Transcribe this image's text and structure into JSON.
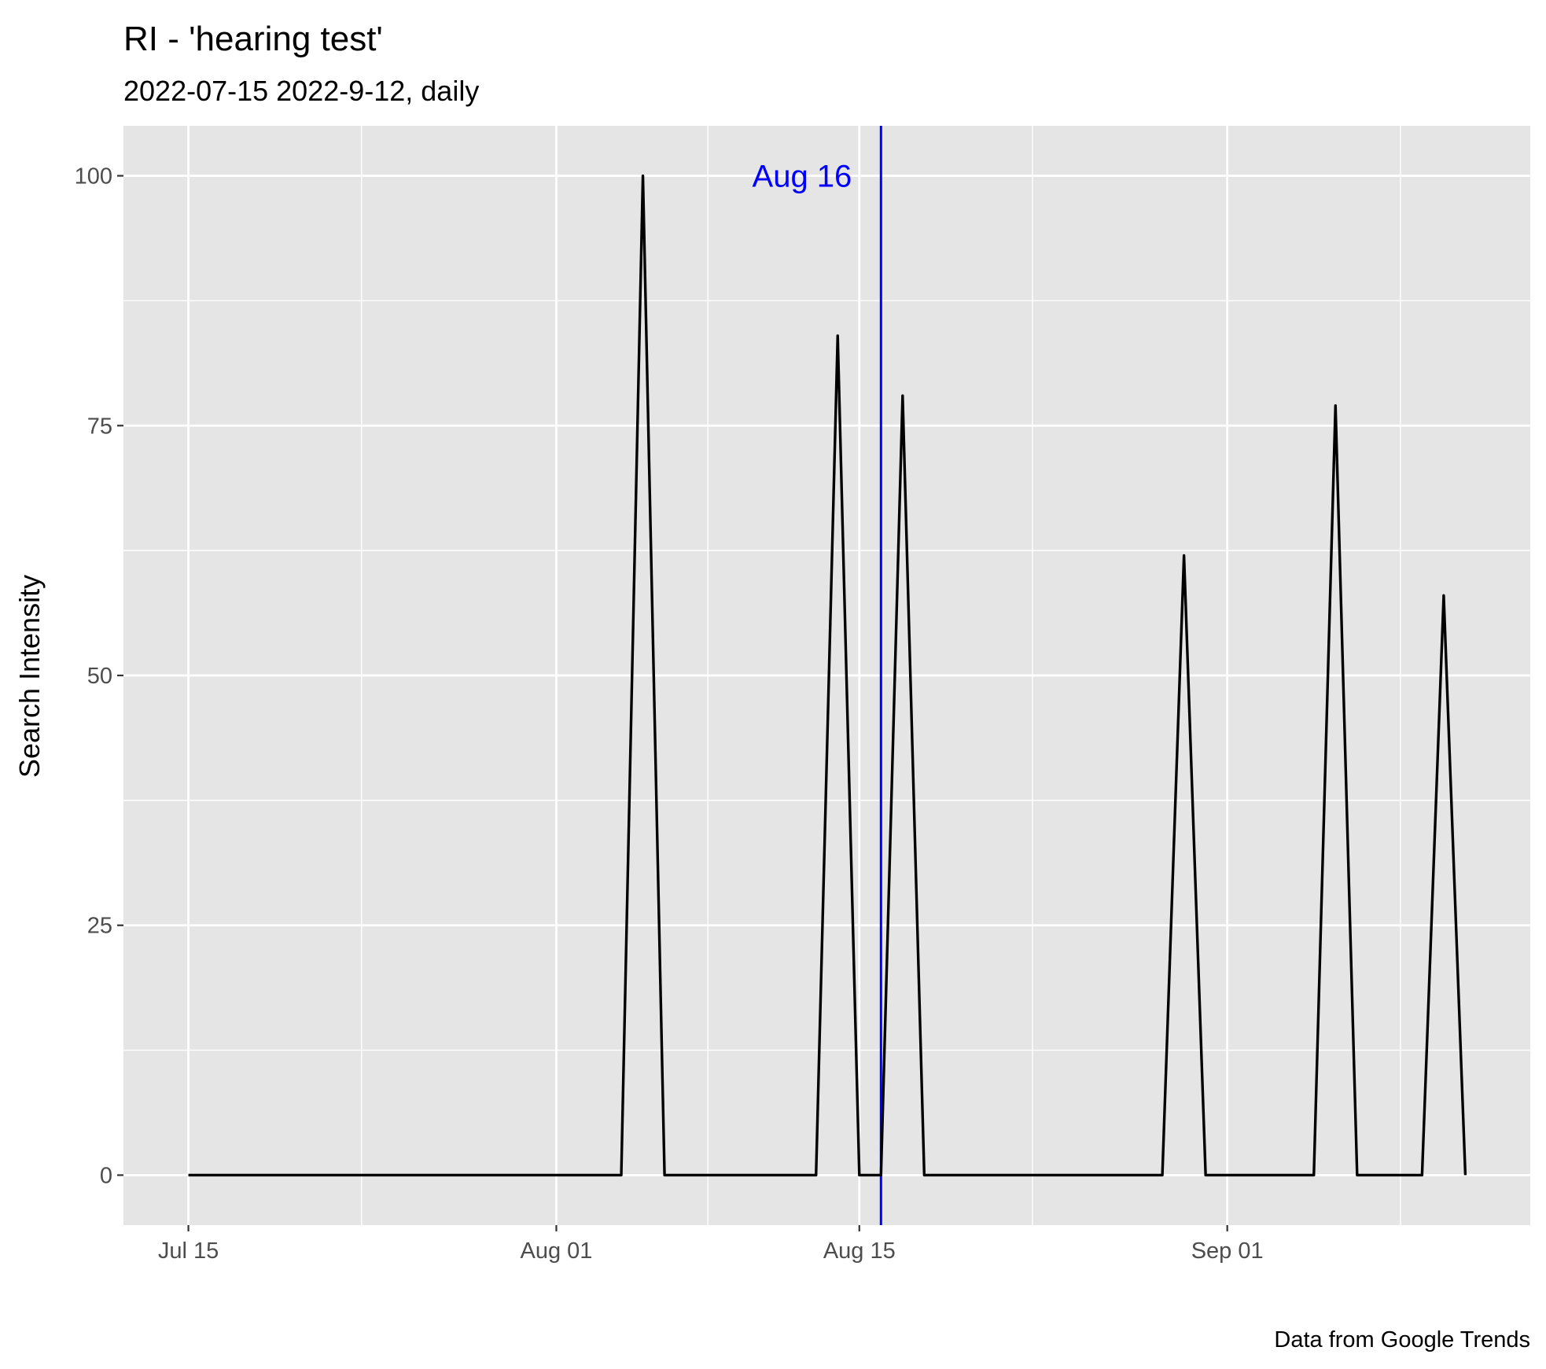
{
  "chart_data": {
    "type": "line",
    "title": "RI  - 'hearing test'",
    "subtitle": "2022-07-15 2022-9-12, daily",
    "xlabel": "",
    "ylabel": "Search Intensity",
    "caption": "Data from Google Trends",
    "xlim": [
      "2022-07-12",
      "2022-09-15"
    ],
    "ylim": [
      -5,
      105
    ],
    "x_ticks": [
      {
        "date": "2022-07-15",
        "label": "Jul 15"
      },
      {
        "date": "2022-08-01",
        "label": "Aug 01"
      },
      {
        "date": "2022-08-15",
        "label": "Aug 15"
      },
      {
        "date": "2022-09-01",
        "label": "Sep 01"
      }
    ],
    "x_minor_ticks": [
      "2022-07-23",
      "2022-08-08",
      "2022-08-23",
      "2022-09-09"
    ],
    "y_ticks": [
      0,
      25,
      50,
      75,
      100
    ],
    "y_minor_ticks": [
      12.5,
      37.5,
      62.5,
      87.5
    ],
    "grid": true,
    "line_color": "#000000",
    "panel_color": "#e5e5e5",
    "annotation": {
      "date": "2022-08-16",
      "label": "Aug 16",
      "color": "#0000ff"
    },
    "series": [
      {
        "values": [
          {
            "x": "2022-07-15",
            "y": 0
          },
          {
            "x": "2022-08-04",
            "y": 0
          },
          {
            "x": "2022-08-05",
            "y": 100
          },
          {
            "x": "2022-08-06",
            "y": 0
          },
          {
            "x": "2022-08-13",
            "y": 0
          },
          {
            "x": "2022-08-14",
            "y": 84
          },
          {
            "x": "2022-08-15",
            "y": 0
          },
          {
            "x": "2022-08-16",
            "y": 0
          },
          {
            "x": "2022-08-17",
            "y": 78
          },
          {
            "x": "2022-08-18",
            "y": 0
          },
          {
            "x": "2022-08-29",
            "y": 0
          },
          {
            "x": "2022-08-30",
            "y": 62
          },
          {
            "x": "2022-08-31",
            "y": 0
          },
          {
            "x": "2022-09-05",
            "y": 0
          },
          {
            "x": "2022-09-06",
            "y": 77
          },
          {
            "x": "2022-09-07",
            "y": 0
          },
          {
            "x": "2022-09-10",
            "y": 0
          },
          {
            "x": "2022-09-11",
            "y": 58
          },
          {
            "x": "2022-09-12",
            "y": 0
          }
        ]
      }
    ]
  }
}
